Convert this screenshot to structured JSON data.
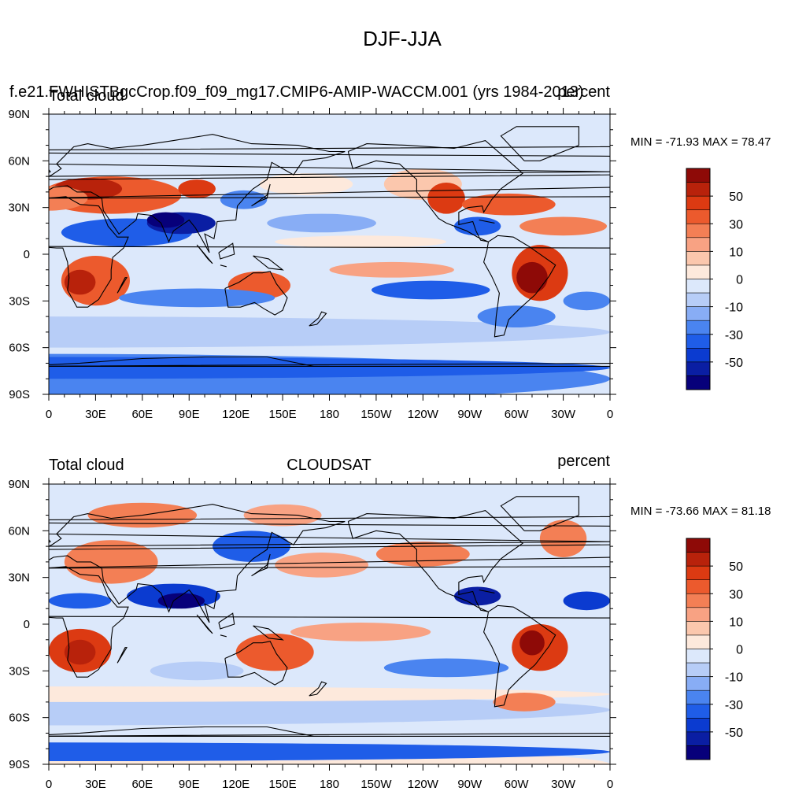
{
  "figure": {
    "title": "DJF-JJA"
  },
  "colors": {
    "palette": [
      "#07007a",
      "#0a1ea3",
      "#0b3bd0",
      "#1f5de8",
      "#4a84f0",
      "#88adf5",
      "#b7cdf7",
      "#dce8fb",
      "#fde9dc",
      "#fbc7ad",
      "#f8a283",
      "#f37f55",
      "#ec5a2d",
      "#dc3a12",
      "#b8220b",
      "#8e0a07"
    ],
    "land_outline": "#000000",
    "background": "#ffffff"
  },
  "chart_data": [
    {
      "type": "heatmap",
      "projection": "cylindrical-equidistant",
      "title_left": "Total cloud",
      "title_top": "f.e21.FWHISTBgcCrop.f09_f09_mg17.CMIP6-AMIP-WACCM.001 (yrs 1984-2013)",
      "title_right": "percent",
      "x_ticks": [
        "0",
        "30E",
        "60E",
        "90E",
        "120E",
        "150E",
        "180",
        "150W",
        "120W",
        "90W",
        "60W",
        "30W",
        "0"
      ],
      "y_ticks": [
        "90N",
        "60N",
        "30N",
        "0",
        "30S",
        "60S",
        "90S"
      ],
      "xlim": [
        0,
        360
      ],
      "ylim": [
        -90,
        90
      ],
      "min_text": "MIN = -71.93 MAX =  78.47",
      "min": -71.93,
      "max": 78.47,
      "colorbar_labels": [
        "50",
        "30",
        "10",
        "0",
        "-10",
        "-30",
        "-50"
      ],
      "colorbar_levels": [
        -70,
        -60,
        -50,
        -40,
        -30,
        -20,
        -10,
        -5,
        0,
        5,
        10,
        20,
        30,
        40,
        50,
        60,
        70
      ]
    },
    {
      "type": "heatmap",
      "projection": "cylindrical-equidistant",
      "title_left": "Total cloud",
      "title_center": "CLOUDSAT",
      "title_right": "percent",
      "x_ticks": [
        "0",
        "30E",
        "60E",
        "90E",
        "120E",
        "150E",
        "180",
        "150W",
        "120W",
        "90W",
        "60W",
        "30W",
        "0"
      ],
      "y_ticks": [
        "90N",
        "60N",
        "30N",
        "0",
        "30S",
        "60S",
        "90S"
      ],
      "xlim": [
        0,
        360
      ],
      "ylim": [
        -90,
        90
      ],
      "min_text": "MIN = -73.66 MAX =  81.18",
      "min": -73.66,
      "max": 81.18,
      "colorbar_labels": [
        "50",
        "30",
        "10",
        "0",
        "-10",
        "-30",
        "-50"
      ],
      "colorbar_levels": [
        -70,
        -60,
        -50,
        -40,
        -30,
        -20,
        -10,
        -5,
        0,
        5,
        10,
        20,
        30,
        40,
        50,
        60,
        70
      ]
    }
  ]
}
